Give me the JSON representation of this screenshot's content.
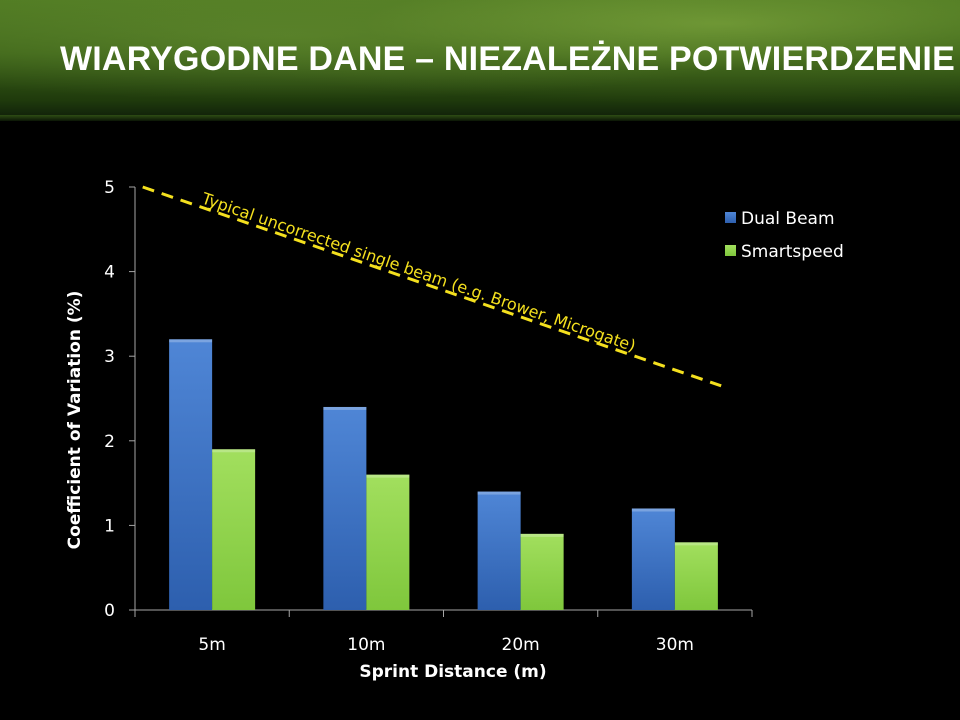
{
  "slide": {
    "title": "WIARYGODNE DANE – NIEZALEŻNE POTWIERDZENIE"
  },
  "chart_data": {
    "type": "bar",
    "categories": [
      "5m",
      "10m",
      "20m",
      "30m"
    ],
    "series": [
      {
        "name": "Dual Beam",
        "values": [
          3.2,
          2.4,
          1.4,
          1.2
        ],
        "color": "#3a72c4"
      },
      {
        "name": "Smartspeed",
        "values": [
          1.9,
          1.6,
          0.9,
          0.8
        ],
        "color": "#8fd34a"
      }
    ],
    "xlabel": "Sprint Distance (m)",
    "ylabel": "Coefficient of Variation (%)",
    "ylim": [
      0,
      5
    ],
    "yticks": [
      0,
      1,
      2,
      3,
      4,
      5
    ],
    "grid": false,
    "legend_position": "top-right",
    "reference_line": {
      "label": "Typical uncorrected single beam (e.g. Brower, Microgate)",
      "style": "dashed",
      "color": "#f4e01e",
      "from": {
        "category_index": -0.45,
        "y": 5.0
      },
      "to": {
        "category_index": 3.3,
        "y": 2.65
      }
    }
  }
}
